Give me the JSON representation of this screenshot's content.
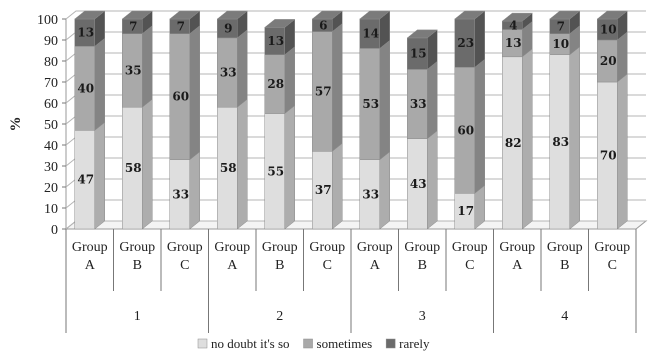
{
  "chart_data": {
    "type": "bar",
    "stacked": true,
    "three_d": true,
    "title": "",
    "ylabel": "%",
    "xlabel": "",
    "ylim": [
      0,
      100
    ],
    "yticks": [
      0,
      10,
      20,
      30,
      40,
      50,
      60,
      70,
      80,
      90,
      100
    ],
    "grid": true,
    "legend_position": "bottom",
    "categories": [
      {
        "label": "Group\nA",
        "group": "1"
      },
      {
        "label": "Group\nB",
        "group": "1"
      },
      {
        "label": "Group\nC",
        "group": "1"
      },
      {
        "label": "Group\nA",
        "group": "2"
      },
      {
        "label": "Group\nB",
        "group": "2"
      },
      {
        "label": "Group\nC",
        "group": "2"
      },
      {
        "label": "Group\nA",
        "group": "3"
      },
      {
        "label": "Group\nB",
        "group": "3"
      },
      {
        "label": "Group\nC",
        "group": "3"
      },
      {
        "label": "Group\nA",
        "group": "4"
      },
      {
        "label": "Group\nB",
        "group": "4"
      },
      {
        "label": "Group\nC",
        "group": "4"
      }
    ],
    "groups": [
      "1",
      "2",
      "3",
      "4"
    ],
    "series": [
      {
        "name": "no doubt it's so",
        "color": "#dedede",
        "values": [
          47,
          58,
          33,
          58,
          55,
          37,
          33,
          43,
          17,
          82,
          83,
          70
        ]
      },
      {
        "name": "sometimes",
        "color": "#a9a9a9",
        "values": [
          40,
          35,
          60,
          33,
          28,
          57,
          53,
          33,
          60,
          13,
          10,
          20
        ]
      },
      {
        "name": "rarely",
        "color": "#6b6b6b",
        "values": [
          13,
          7,
          7,
          9,
          13,
          6,
          14,
          15,
          23,
          4,
          7,
          10
        ]
      }
    ]
  }
}
